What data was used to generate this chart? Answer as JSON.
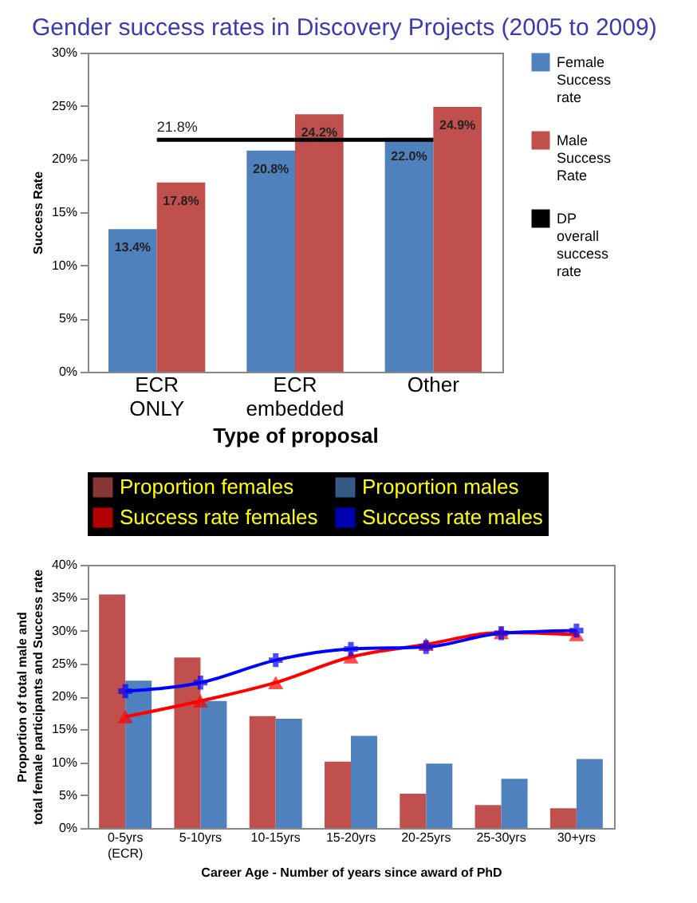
{
  "chart_data": [
    {
      "type": "bar",
      "title": "Gender success rates in Discovery Projects (2005 to 2009)",
      "xlabel": "Type of proposal",
      "ylabel": "Success Rate",
      "categories": [
        "ECR ONLY",
        "ECR embedded",
        "Other"
      ],
      "series": [
        {
          "name": "Female Success rate",
          "color": "#4f81bd",
          "values": [
            13.4,
            20.8,
            22.0
          ],
          "value_labels": [
            "13.4%",
            "20.8%",
            "22.0%"
          ]
        },
        {
          "name": "Male Success Rate",
          "color": "#c0504d",
          "values": [
            17.8,
            24.2,
            24.9
          ],
          "value_labels": [
            "17.8%",
            "24.2%",
            "24.9%"
          ]
        },
        {
          "name": "DP overall success rate",
          "type": "line",
          "color": "#000000",
          "values": [
            21.8,
            21.8,
            21.8
          ],
          "value_labels": [
            "21.8%",
            null,
            null
          ]
        }
      ],
      "ylim": [
        0,
        30
      ],
      "yticks": [
        {
          "value": 0,
          "label": "0%"
        },
        {
          "value": 5,
          "label": "5%"
        },
        {
          "value": 10,
          "label": "10%"
        },
        {
          "value": 15,
          "label": "15%"
        },
        {
          "value": 20,
          "label": "20%"
        },
        {
          "value": 25,
          "label": "25%"
        },
        {
          "value": 30,
          "label": "30%"
        }
      ],
      "grid": false,
      "legend": "right"
    },
    {
      "type": "bar",
      "xlabel": "Career Age - Number of years since award of PhD",
      "ylabel": "Proportion of total male and total female participants and Success rate",
      "categories": [
        "0-5yrs (ECR)",
        "5-10yrs",
        "10-15yrs",
        "15-20yrs",
        "20-25yrs",
        "25-30yrs",
        "30+yrs"
      ],
      "series": [
        {
          "name": "Proportion females",
          "color": "#c0504d",
          "values": [
            35.5,
            25.9,
            17.0,
            10.1,
            5.2,
            3.5,
            3.0
          ]
        },
        {
          "name": "Proportion males",
          "color": "#4f81bd",
          "values": [
            22.4,
            19.3,
            16.6,
            14.0,
            9.8,
            7.5,
            10.5
          ]
        },
        {
          "name": "Success rate females",
          "type": "line",
          "marker": "triangle",
          "color": "#ff0000",
          "values": [
            16.9,
            19.3,
            22.1,
            26.0,
            27.9,
            29.7,
            29.4
          ]
        },
        {
          "name": "Success rate males",
          "type": "line",
          "marker": "cross",
          "color": "#0000ff",
          "values": [
            20.8,
            22.1,
            25.5,
            27.2,
            27.5,
            29.6,
            30.0
          ]
        }
      ],
      "ylim": [
        0,
        40
      ],
      "yticks": [
        {
          "value": 0,
          "label": "0%"
        },
        {
          "value": 5,
          "label": "5%"
        },
        {
          "value": 10,
          "label": "10%"
        },
        {
          "value": 15,
          "label": "15%"
        },
        {
          "value": 20,
          "label": "20%"
        },
        {
          "value": 25,
          "label": "25%"
        },
        {
          "value": 30,
          "label": "30%"
        },
        {
          "value": 35,
          "label": "35%"
        },
        {
          "value": 40,
          "label": "40%"
        }
      ],
      "grid": false,
      "legend": "top"
    }
  ]
}
